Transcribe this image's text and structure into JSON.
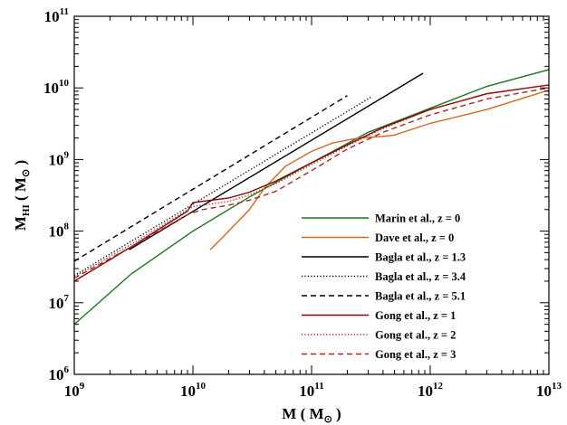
{
  "chart_data": {
    "type": "line",
    "x_scale": "log",
    "y_scale": "log",
    "xlim": [
      1000000000.0,
      10000000000000.0
    ],
    "ylim": [
      1000000.0,
      100000000000.0
    ],
    "xlabel": {
      "main": "M ( M",
      "sub": "⊙",
      "tail": ")"
    },
    "ylabel": {
      "main": "M",
      "sub": "HI",
      "mid": " ( M",
      "sub2": "⊙",
      "tail": ")"
    },
    "x_ticks": [
      {
        "value": 1000000000.0,
        "base": "10",
        "exp": "9"
      },
      {
        "value": 10000000000.0,
        "base": "10",
        "exp": "10"
      },
      {
        "value": 100000000000.0,
        "base": "10",
        "exp": "11"
      },
      {
        "value": 1000000000000.0,
        "base": "10",
        "exp": "12"
      },
      {
        "value": 10000000000000.0,
        "base": "10",
        "exp": "13"
      }
    ],
    "y_ticks": [
      {
        "value": 1000000.0,
        "base": "10",
        "exp": "6"
      },
      {
        "value": 10000000.0,
        "base": "10",
        "exp": "7"
      },
      {
        "value": 100000000.0,
        "base": "10",
        "exp": "8"
      },
      {
        "value": 1000000000.0,
        "base": "10",
        "exp": "9"
      },
      {
        "value": 10000000000.0,
        "base": "10",
        "exp": "10"
      },
      {
        "value": 100000000000.0,
        "base": "10",
        "exp": "11"
      }
    ],
    "legend_position": "lower-right",
    "series": [
      {
        "name": "Marin et al., z = 0",
        "color": "#1a7a1a",
        "dash": "solid",
        "x": [
          1000000000.0,
          3000000000.0,
          10000000000.0,
          30000000000.0,
          100000000000.0,
          300000000000.0,
          1000000000000.0,
          3000000000000.0,
          10000000000000.0
        ],
        "y": [
          5000000.0,
          25000000.0,
          100000000.0,
          300000000.0,
          900000000.0,
          2400000000.0,
          5200000000.0,
          10500000000.0,
          18000000000.0
        ]
      },
      {
        "name": "Dave et al., z = 0",
        "color": "#d2691e",
        "dash": "solid",
        "x": [
          14000000000.0,
          20000000000.0,
          30000000000.0,
          40000000000.0,
          60000000000.0,
          100000000000.0,
          150000000000.0,
          250000000000.0,
          400000000000.0,
          500000000000.0,
          1000000000000.0,
          3000000000000.0,
          10000000000000.0
        ],
        "y": [
          55000000.0,
          100000000.0,
          200000000.0,
          400000000.0,
          800000000.0,
          1300000000.0,
          1700000000.0,
          2000000000.0,
          2100000000.0,
          2200000000.0,
          3200000000.0,
          5000000000.0,
          9300000000.0
        ]
      },
      {
        "name": "Bagla et al., z = 1.3",
        "color": "#000000",
        "dash": "solid",
        "x": [
          2900000000.0,
          870000000000.0
        ],
        "y": [
          55000000.0,
          16000000000.0
        ]
      },
      {
        "name": "Bagla et al., z = 3.4",
        "color": "#000000",
        "dash": "dotted",
        "x": [
          1000000000.0,
          320000000000.0
        ],
        "y": [
          24000000.0,
          7500000000.0
        ]
      },
      {
        "name": "Bagla et al., z = 5.1",
        "color": "#000000",
        "dash": "dashed",
        "x": [
          1000000000.0,
          200000000000.0
        ],
        "y": [
          38000000.0,
          7800000000.0
        ]
      },
      {
        "name": "Gong et al., z = 1",
        "color": "#8b0000",
        "dash": "solid",
        "x": [
          1000000000.0,
          3000000000.0,
          9000000000.0,
          10000000000.0,
          20000000000.0,
          30000000000.0,
          50000000000.0,
          100000000000.0,
          200000000000.0,
          400000000000.0,
          1000000000000.0,
          3000000000000.0,
          10000000000000.0
        ],
        "y": [
          20000000.0,
          60000000.0,
          190000000.0,
          250000000.0,
          290000000.0,
          350000000.0,
          500000000.0,
          900000000.0,
          1600000000.0,
          2800000000.0,
          5000000000.0,
          8300000000.0,
          11000000000.0
        ]
      },
      {
        "name": "Gong et al., z = 2",
        "color": "#b22222",
        "dash": "dotted",
        "x": [
          1000000000.0,
          3000000000.0,
          10000000000.0,
          20000000000.0,
          30000000000.0,
          50000000000.0,
          100000000000.0,
          200000000000.0,
          400000000000.0,
          1000000000000.0,
          3000000000000.0,
          10000000000000.0
        ],
        "y": [
          23000000.0,
          65000000.0,
          220000000.0,
          260000000.0,
          320000000.0,
          460000000.0,
          850000000.0,
          1550000000.0,
          2700000000.0,
          5000000000.0,
          8200000000.0,
          11000000000.0
        ]
      },
      {
        "name": "Gong et al., z = 3",
        "color": "#b22222",
        "dash": "dashed",
        "x": [
          1000000000.0,
          3000000000.0,
          9000000000.0,
          12000000000.0,
          20000000000.0,
          30000000000.0,
          50000000000.0,
          100000000000.0,
          200000000000.0,
          400000000000.0,
          1000000000000.0,
          3000000000000.0,
          10000000000000.0
        ],
        "y": [
          22000000.0,
          60000000.0,
          170000000.0,
          200000000.0,
          230000000.0,
          270000000.0,
          360000000.0,
          700000000.0,
          1400000000.0,
          2400000000.0,
          4200000000.0,
          7000000000.0,
          10000000000.0
        ]
      }
    ]
  }
}
